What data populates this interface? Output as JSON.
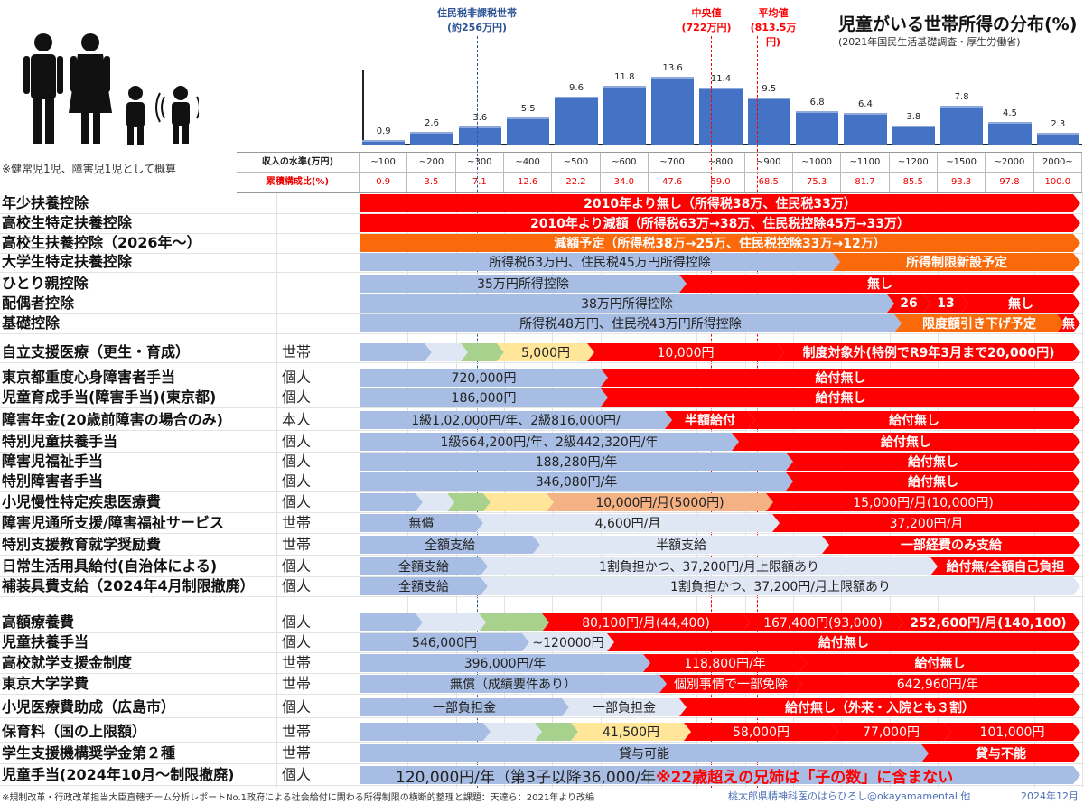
{
  "chart_data": {
    "type": "bar",
    "title": "児童がいる世帯所得の分布(%)",
    "subtitle": "(2021年国民生活基礎調査・厚生労働省)",
    "categories": [
      "~100",
      "~200",
      "~300",
      "~400",
      "~500",
      "~600",
      "~700",
      "~800",
      "~900",
      "~1000",
      "~1100",
      "~1200",
      "~1500",
      "~2000",
      "2000~"
    ],
    "values": [
      0.9,
      2.6,
      3.6,
      5.5,
      9.6,
      11.8,
      13.6,
      11.4,
      9.5,
      6.8,
      6.4,
      3.8,
      7.8,
      4.5,
      2.3
    ],
    "cumulative": [
      "0.9",
      "3.5",
      "7.1",
      "12.6",
      "22.2",
      "34.0",
      "47.6",
      "59.0",
      "68.5",
      "75.3",
      "81.7",
      "85.5",
      "93.3",
      "97.8",
      "100.0"
    ],
    "row_header_income": "収入の水準(万円)",
    "row_header_cumulative": "累積構成比(%)",
    "annotations": [
      {
        "label": "住民税非課税世帯",
        "sub": "(約256万円)",
        "value": 256,
        "color": "#2f5597"
      },
      {
        "label": "中央値",
        "sub": "(722万円)",
        "value": 722,
        "color": "#ff0000"
      },
      {
        "label": "平均値",
        "sub": "(813.5万円)",
        "value": 813.5,
        "color": "#ff0000"
      }
    ]
  },
  "family_note": "※健常児1児、障害児1児として概算",
  "rows": [
    {
      "label": "年少扶養控除",
      "scope": "",
      "segs": [
        {
          "k": "red",
          "t": "2010年より無し（所得税38万、住民税33万）"
        }
      ]
    },
    {
      "label": "高校生特定扶養控除",
      "scope": "",
      "segs": [
        {
          "k": "red",
          "t": "2010年より減額（所得税63万→38万、住民税控除45万→33万）"
        }
      ]
    },
    {
      "label": "高校生扶養控除（2026年～）",
      "scope": "",
      "segs": [
        {
          "k": "orange",
          "t": "減額予定（所得税38万→25万、住民税控除33万→12万）"
        }
      ]
    },
    {
      "label": "大学生特定扶養控除",
      "scope": "",
      "segs": [
        {
          "k": "blue",
          "t": "所得税63万円、住民税45万円所得控除"
        },
        {
          "k": "orange",
          "t": "所得制限新設予定"
        }
      ]
    },
    {
      "label": "ひとり親控除",
      "scope": "",
      "segs": [
        {
          "k": "blue",
          "t": "35万円所得控除"
        },
        {
          "k": "red",
          "t": "無し"
        }
      ]
    },
    {
      "label": "配偶者控除",
      "scope": "",
      "segs": [
        {
          "k": "blue",
          "t": "38万円所得控除"
        },
        {
          "k": "red",
          "t": "26"
        },
        {
          "k": "red",
          "t": "13"
        },
        {
          "k": "red",
          "t": "無し"
        }
      ]
    },
    {
      "label": "基礎控除",
      "scope": "",
      "segs": [
        {
          "k": "blue",
          "t": "所得税48万円、住民税43万円所得控除"
        },
        {
          "k": "orange",
          "t": "限度額引き下げ予定"
        },
        {
          "k": "red",
          "t": "無"
        }
      ]
    },
    {
      "label": "自立支援医療（更生・育成）",
      "scope": "世帯",
      "segs": [
        {
          "k": "blue",
          "t": ""
        },
        {
          "k": "light",
          "t": ""
        },
        {
          "k": "green",
          "t": ""
        },
        {
          "k": "yellow",
          "t": "5,000円"
        },
        {
          "k": "redthin",
          "t": "10,000円"
        },
        {
          "k": "red",
          "t": "制度対象外(特例でR9年3月まで20,000円)"
        }
      ]
    },
    {
      "label": "東京都重度心身障害者手当",
      "scope": "個人",
      "segs": [
        {
          "k": "blue",
          "t": "720,000円"
        },
        {
          "k": "red",
          "t": "給付無し"
        }
      ]
    },
    {
      "label": "児童育成手当(障害手当)(東京都)",
      "scope": "個人",
      "segs": [
        {
          "k": "blue",
          "t": "186,000円"
        },
        {
          "k": "red",
          "t": "給付無し"
        }
      ]
    },
    {
      "label": "障害年金(20歳前障害の場合のみ)",
      "scope": "本人",
      "segs": [
        {
          "k": "blue",
          "t": "1級1,02,000円/年、2級816,000円/"
        },
        {
          "k": "red",
          "t": "半額給付"
        },
        {
          "k": "red",
          "t": "給付無し"
        }
      ]
    },
    {
      "label": "特別児童扶養手当",
      "scope": "個人",
      "segs": [
        {
          "k": "blue",
          "t": "1級664,200円/年、2級442,320円/年"
        },
        {
          "k": "red",
          "t": "給付無し"
        }
      ]
    },
    {
      "label": "障害児福祉手当",
      "scope": "個人",
      "segs": [
        {
          "k": "blue",
          "t": "188,280円/年"
        },
        {
          "k": "red",
          "t": "給付無し"
        }
      ]
    },
    {
      "label": "特別障害者手当",
      "scope": "個人",
      "segs": [
        {
          "k": "blue",
          "t": "346,080円/年"
        },
        {
          "k": "red",
          "t": "給付無し"
        }
      ]
    },
    {
      "label": "小児慢性特定疾患医療費",
      "scope": "個人",
      "segs": [
        {
          "k": "blue",
          "t": ""
        },
        {
          "k": "light",
          "t": ""
        },
        {
          "k": "green",
          "t": ""
        },
        {
          "k": "yellow",
          "t": ""
        },
        {
          "k": "peach",
          "t": "10,000円/月(5000円)"
        },
        {
          "k": "redthin",
          "t": "15,000円/月(10,000円)"
        }
      ]
    },
    {
      "label": "障害児通所支援/障害福祉サービス",
      "scope": "世帯",
      "segs": [
        {
          "k": "blue",
          "t": "無償"
        },
        {
          "k": "light",
          "t": "4,600円/月"
        },
        {
          "k": "redthin",
          "t": "37,200円/月"
        }
      ]
    },
    {
      "label": "特別支援教育就学奨励費",
      "scope": "世帯",
      "segs": [
        {
          "k": "blue",
          "t": "全額支給"
        },
        {
          "k": "light",
          "t": "半額支給"
        },
        {
          "k": "red",
          "t": "一部経費のみ支給"
        }
      ]
    },
    {
      "label": "日常生活用具給付(自治体による)",
      "scope": "個人",
      "segs": [
        {
          "k": "blue",
          "t": "全額支給"
        },
        {
          "k": "light",
          "t": "1割負担かつ、37,200円/月上限額あり"
        },
        {
          "k": "red",
          "t": "給付無/全額自己負担"
        }
      ]
    },
    {
      "label": "補装具費支給（2024年4月制限撤廃）",
      "scope": "個人",
      "segs": [
        {
          "k": "blue",
          "t": "全額支給"
        },
        {
          "k": "light",
          "t": "1割負担かつ、37,200円/月上限額あり"
        }
      ]
    },
    {
      "label": "高額療養費",
      "scope": "個人",
      "segs": [
        {
          "k": "blue",
          "t": ""
        },
        {
          "k": "light",
          "t": ""
        },
        {
          "k": "green",
          "t": ""
        },
        {
          "k": "redthin",
          "t": "80,100円/月(44,400)"
        },
        {
          "k": "redthin",
          "t": "167,400円(93,000)"
        },
        {
          "k": "red",
          "t": "252,600円/月(140,100)"
        }
      ]
    },
    {
      "label": "児童扶養手当",
      "scope": "個人",
      "segs": [
        {
          "k": "blue",
          "t": "546,000円"
        },
        {
          "k": "light",
          "t": "~120000円"
        },
        {
          "k": "red",
          "t": "給付無し"
        }
      ]
    },
    {
      "label": "高校就学支援金制度",
      "scope": "世帯",
      "segs": [
        {
          "k": "blue",
          "t": "396,000円/年"
        },
        {
          "k": "redthin",
          "t": "118,800円/年"
        },
        {
          "k": "red",
          "t": "給付無し"
        }
      ]
    },
    {
      "label": "東京大学学費",
      "scope": "世帯",
      "segs": [
        {
          "k": "blue",
          "t": "無償（成績要件あり）"
        },
        {
          "k": "redthin",
          "t": "個別事情で一部免除"
        },
        {
          "k": "redthin",
          "t": "642,960円/年"
        }
      ]
    },
    {
      "label": "小児医療費助成（広島市）",
      "scope": "個人",
      "segs": [
        {
          "k": "blue",
          "t": "一部負担金"
        },
        {
          "k": "light",
          "t": "一部負担金"
        },
        {
          "k": "red",
          "t": "給付無し（外来・入院とも３割）"
        }
      ]
    },
    {
      "label": "保育料（国の上限額）",
      "scope": "世帯",
      "segs": [
        {
          "k": "blue",
          "t": ""
        },
        {
          "k": "light",
          "t": ""
        },
        {
          "k": "green",
          "t": ""
        },
        {
          "k": "yellow",
          "t": "41,500円"
        },
        {
          "k": "redthin",
          "t": "58,000円"
        },
        {
          "k": "redthin",
          "t": "77,000円"
        },
        {
          "k": "redthin",
          "t": "101,000円"
        }
      ]
    },
    {
      "label": "学生支援機構奨学金第２種",
      "scope": "世帯",
      "segs": [
        {
          "k": "blue",
          "t": "貸与可能"
        },
        {
          "k": "red",
          "t": "貸与不能"
        }
      ]
    },
    {
      "label": "児童手当(2024年10月～制限撤廃)",
      "scope": "個人",
      "segs": [
        {
          "k": "blue",
          "t": "120,000円/年（第3子以降36,000/年"
        }
      ],
      "note": "※22歳超えの兄姉は「子の数」に含まない"
    }
  ],
  "footer": {
    "source": "※規制改革・行政改革担当大臣直轄チーム分析レポートNo.1政府による社会給付に関わる所得制限の横断的整理と課題：天達ら：2021年より改編",
    "author": "桃太郎県精神科医のはらひろし@okayamamental 他",
    "date": "2024年12月"
  }
}
